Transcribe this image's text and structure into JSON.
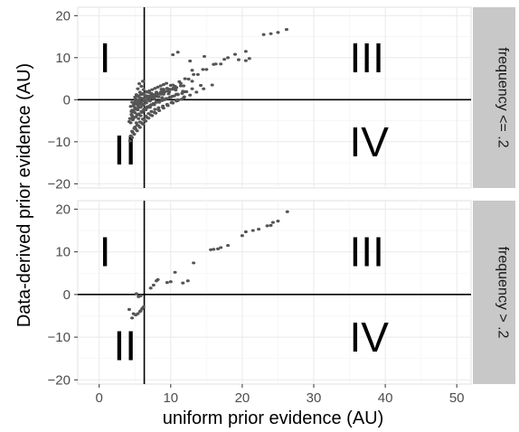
{
  "chart_data": {
    "type": "scatter",
    "xlabel": "uniform prior evidence (AU)",
    "ylabel": "Data-derived prior evidence (AU)",
    "xlim": [
      -3,
      52
    ],
    "ylim": [
      -21,
      22
    ],
    "x_ticks": [
      0,
      10,
      20,
      30,
      40,
      50
    ],
    "y_ticks": [
      -20,
      -10,
      0,
      10,
      20
    ],
    "grid": true,
    "facet_layout": "stacked vertically, facet strip labels on the right",
    "reference_lines": {
      "vertical_x": 6.3,
      "horizontal_y": 0
    },
    "colors": {
      "points": "#555555",
      "panel_background": "#ffffff",
      "grid_major": "#ebebeb",
      "grid_minor": "#f5f5f5",
      "strip_background": "#c8c8c8",
      "reference_lines": "#000000"
    },
    "panels": [
      {
        "strip_label": "frequency <= .2",
        "quadrant_labels": [
          {
            "text": "I",
            "x": 0,
            "y": 10
          },
          {
            "text": "III",
            "x": 35,
            "y": 10
          },
          {
            "text": "II",
            "x": 2,
            "y": -12
          },
          {
            "text": "IV",
            "x": 35,
            "y": -10
          }
        ],
        "points": {
          "x": [
            5,
            5.2,
            5.5,
            5.8,
            6,
            6.2,
            6.5,
            6.8,
            7,
            7.3,
            7.6,
            8,
            8.4,
            8.8,
            9.2,
            9.6,
            10,
            10.5,
            11,
            11.6,
            12.2,
            4.6,
            4.9,
            5.3,
            5.7,
            6.1,
            6.5,
            6.9,
            7.3,
            7.8,
            8.3,
            8.9,
            9.5,
            10.1,
            10.8,
            11.5,
            4.4,
            4.7,
            5.1,
            5.5,
            5.9,
            6.3,
            6.7,
            7.2,
            7.7,
            8.2,
            8.8,
            9.4,
            10.2,
            11,
            12,
            13,
            14.2,
            4.3,
            4.6,
            5,
            5.4,
            5.8,
            6.2,
            6.6,
            7,
            7.5,
            8,
            8.6,
            9.2,
            9.8,
            10.6,
            11.4,
            12.5,
            13.8,
            15,
            16.3,
            4.3,
            4.6,
            4.9,
            5.3,
            5.7,
            6.1,
            6.5,
            6.9,
            7.4,
            7.9,
            8.4,
            9,
            9.6,
            10.3,
            11,
            11.8,
            12.7,
            13.6,
            14.6,
            15.8,
            4.4,
            4.7,
            5.1,
            5.5,
            5.9,
            6.3,
            6.7,
            7.2,
            7.7,
            8.3,
            8.9,
            9.5,
            10.2,
            11,
            11.9,
            4.5,
            4.8,
            5.2,
            5.6,
            6,
            6.5,
            7,
            7.5,
            8.1,
            8.8,
            9.5,
            10.3,
            4.6,
            5,
            5.4,
            5.8,
            6.3,
            6.8,
            7.4,
            8,
            8.7,
            4.8,
            5.2,
            5.7,
            6.2,
            6.7,
            7.3,
            4.9,
            5.3,
            5.8,
            6.4,
            7,
            5.1,
            5.5,
            6,
            6.6,
            5.2,
            5.7,
            6.2,
            5.4,
            5.9,
            5.6,
            6.1,
            4.4,
            4.8,
            5.2,
            5.6,
            6,
            6.4,
            6.8,
            7.2,
            7.6,
            8,
            8.5,
            9,
            9.6,
            10.2,
            10.8,
            11.4,
            4.5,
            5,
            5.5,
            6,
            6.5,
            7.1,
            7.7,
            8.3,
            9,
            9.8,
            10.6,
            5.6,
            6.3,
            7.1,
            8,
            9,
            10,
            11.2,
            12,
            13.2,
            14.5,
            16,
            17.5,
            19,
            20.5,
            5,
            5.4,
            5.8,
            6.2,
            6.6,
            7,
            7.4,
            7.8,
            8.2,
            8.6,
            9,
            9.4,
            4.6,
            5.1,
            5.6,
            6.1,
            6.6,
            7.1,
            7.6,
            8.1,
            8.6,
            9.1,
            9.7,
            10.4,
            4.7,
            5.3,
            5.9,
            6.5,
            7.1,
            7.7,
            8.4,
            9.1,
            9.9,
            10.8,
            11.7,
            4.2,
            4.8,
            5.4,
            6,
            6.6,
            7.3,
            8,
            8.8,
            9.7,
            10.7,
            11.8,
            13,
            17,
            18,
            19.5,
            20.5,
            21,
            23,
            24,
            25,
            26.2,
            10.3,
            11,
            12.7,
            13,
            14.7
          ],
          "y": [
            -6.5,
            -5.5,
            -4.5,
            -3.8,
            -3,
            -2.5,
            -2,
            -1.8,
            -1.5,
            -1.2,
            -0.9,
            -0.6,
            -0.4,
            -0.2,
            0.1,
            0.3,
            0.6,
            0.9,
            1.2,
            1.5,
            1.9,
            -7.5,
            -6.8,
            -6,
            -5.3,
            -4.6,
            -3.9,
            -3.3,
            -2.8,
            -2.3,
            -1.9,
            -1.5,
            -1.1,
            -0.7,
            -0.3,
            0.1,
            -5.5,
            -4.8,
            -4.1,
            -3.4,
            -2.8,
            -2.2,
            -1.7,
            -1.3,
            -0.9,
            -0.5,
            -0.1,
            0.3,
            0.8,
            1.3,
            1.9,
            2.6,
            3.4,
            -4.5,
            -3.8,
            -3.1,
            -2.4,
            -1.8,
            -1.2,
            -0.7,
            -0.2,
            0.3,
            0.8,
            1.3,
            1.9,
            2.5,
            3.2,
            3.9,
            4.9,
            6,
            7.2,
            8.5,
            -9.8,
            -9,
            -8.2,
            -7.4,
            -6.6,
            -5.8,
            -5.1,
            -4.4,
            -3.8,
            -3.2,
            -2.6,
            -2,
            -1.4,
            -0.8,
            -0.2,
            0.4,
            1.1,
            1.8,
            2.6,
            3.5,
            -8.6,
            -7.8,
            -7,
            -6.2,
            -5.5,
            -4.8,
            -4.2,
            -3.6,
            -3,
            -2.4,
            -1.8,
            -1.2,
            -0.6,
            0,
            0.7,
            -3.5,
            -2.9,
            -2.3,
            -1.7,
            -1.1,
            -0.5,
            0.1,
            0.7,
            1.3,
            2,
            2.7,
            3.5,
            -2.5,
            -1.9,
            -1.3,
            -0.7,
            -0.1,
            0.5,
            1.1,
            1.8,
            2.5,
            -1.5,
            -0.9,
            -0.3,
            0.3,
            0.9,
            1.5,
            -0.8,
            -0.2,
            0.4,
            1,
            1.7,
            0.1,
            0.7,
            1.3,
            1.9,
            1.2,
            1.8,
            2.4,
            2.6,
            3.2,
            3.8,
            4.4,
            -1.6,
            -1.3,
            -1,
            -0.7,
            -0.4,
            -0.1,
            0.2,
            0.5,
            0.8,
            1.1,
            1.4,
            1.7,
            2.1,
            2.5,
            2.9,
            3.3,
            -2.8,
            -2.3,
            -1.8,
            -1.3,
            -0.8,
            -0.3,
            0.2,
            0.7,
            1.3,
            1.9,
            2.5,
            -1,
            -0.1,
            0.8,
            1.6,
            2.5,
            3.4,
            4.3,
            5,
            6,
            7.2,
            8.4,
            9.6,
            10.8,
            11.5,
            0.6,
            0.9,
            1.2,
            1.5,
            1.8,
            2.1,
            2.4,
            2.7,
            3,
            3.3,
            3.6,
            3.9,
            -0.6,
            -0.3,
            0,
            0.3,
            0.6,
            0.9,
            1.2,
            1.5,
            1.8,
            2.1,
            2.4,
            2.8,
            -4.2,
            -3.6,
            -3,
            -2.4,
            -1.8,
            -1.2,
            -0.6,
            0,
            0.6,
            1.3,
            2,
            -5.2,
            -4.4,
            -3.6,
            -2.8,
            -2,
            -1.2,
            -0.4,
            0.5,
            1.4,
            2.3,
            3.3,
            4.4,
            8.5,
            10,
            9.5,
            9.3,
            9.8,
            15.5,
            15.7,
            16,
            16.7,
            10.7,
            11.3,
            9.2,
            7,
            10.3
          ]
        }
      },
      {
        "strip_label": "frequency > .2",
        "quadrant_labels": [
          {
            "text": "I",
            "x": 0,
            "y": 10
          },
          {
            "text": "III",
            "x": 35,
            "y": 10
          },
          {
            "text": "II",
            "x": 2,
            "y": -12
          },
          {
            "text": "IV",
            "x": 35,
            "y": -10
          }
        ],
        "points": {
          "x": [
            4.2,
            4.8,
            5.1,
            5.4,
            5.7,
            5.8,
            6,
            6.2,
            5.8,
            5.5,
            5.2,
            4.6,
            7.2,
            7.6,
            8,
            8.2,
            9.5,
            10,
            10.6,
            11.7,
            12.4,
            13.2,
            15.6,
            16,
            16.6,
            17,
            18,
            20,
            21.5,
            22.3,
            23.5,
            24,
            24.3,
            25,
            26.3,
            20.5
          ],
          "y": [
            -3.5,
            -4.5,
            -4.8,
            -4.5,
            -4,
            -3.8,
            -3.3,
            -2.9,
            -0.3,
            -0.5,
            0.2,
            -5.5,
            1.5,
            2.2,
            3.2,
            3.5,
            2.8,
            3,
            5.2,
            2.7,
            3.2,
            7.4,
            10.5,
            10.6,
            10.7,
            11,
            11.5,
            13.8,
            15,
            15.3,
            16.1,
            16.2,
            16.9,
            17.2,
            19.4,
            14.7
          ]
        }
      }
    ]
  }
}
